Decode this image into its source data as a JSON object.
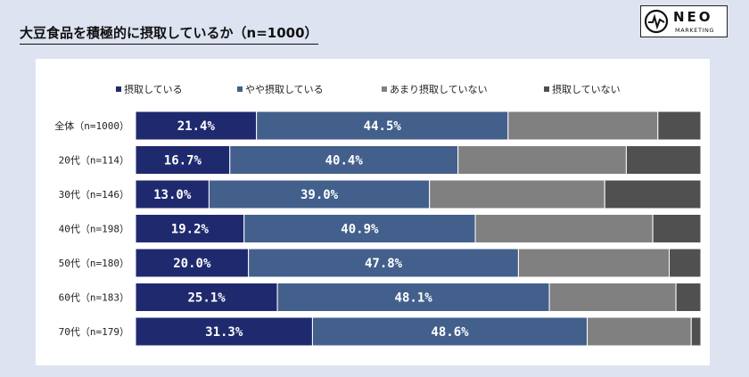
{
  "title": "大豆食品を積極的に摂取しているか（n=1000）",
  "logo": {
    "name": "NEO",
    "sub": "MARKETING"
  },
  "colors": {
    "background": "#dde3f0",
    "panel": "#ffffff",
    "series": [
      "#1f2a6e",
      "#43608c",
      "#808080",
      "#505050"
    ]
  },
  "chart_data": {
    "type": "bar",
    "orientation": "horizontal",
    "stacked": true,
    "percent_stacked": true,
    "title": "大豆食品を積極的に摂取しているか（n=1000）",
    "legend_position": "top",
    "categories": [
      "全体（n=1000）",
      "20代（n=114）",
      "30代（n=146）",
      "40代（n=198）",
      "50代（n=180）",
      "60代（n=183）",
      "70代（n=179）"
    ],
    "series": [
      {
        "name": "摂取している",
        "values": [
          21.4,
          16.7,
          13.0,
          19.2,
          20.0,
          25.1,
          31.3
        ],
        "labels": [
          "21.4%",
          "16.7%",
          "13.0%",
          "19.2%",
          "20.0%",
          "25.1%",
          "31.3%"
        ]
      },
      {
        "name": "やや摂取している",
        "values": [
          44.5,
          40.4,
          39.0,
          40.9,
          47.8,
          48.1,
          48.6
        ],
        "labels": [
          "44.5%",
          "40.4%",
          "39.0%",
          "40.9%",
          "47.8%",
          "48.1%",
          "48.6%"
        ]
      },
      {
        "name": "あまり摂取していない",
        "values": [
          26.5,
          29.8,
          31.0,
          31.4,
          26.7,
          22.4,
          18.4
        ]
      },
      {
        "name": "摂取していない",
        "values": [
          7.6,
          13.2,
          17.0,
          8.5,
          5.6,
          4.4,
          1.7
        ]
      }
    ]
  }
}
